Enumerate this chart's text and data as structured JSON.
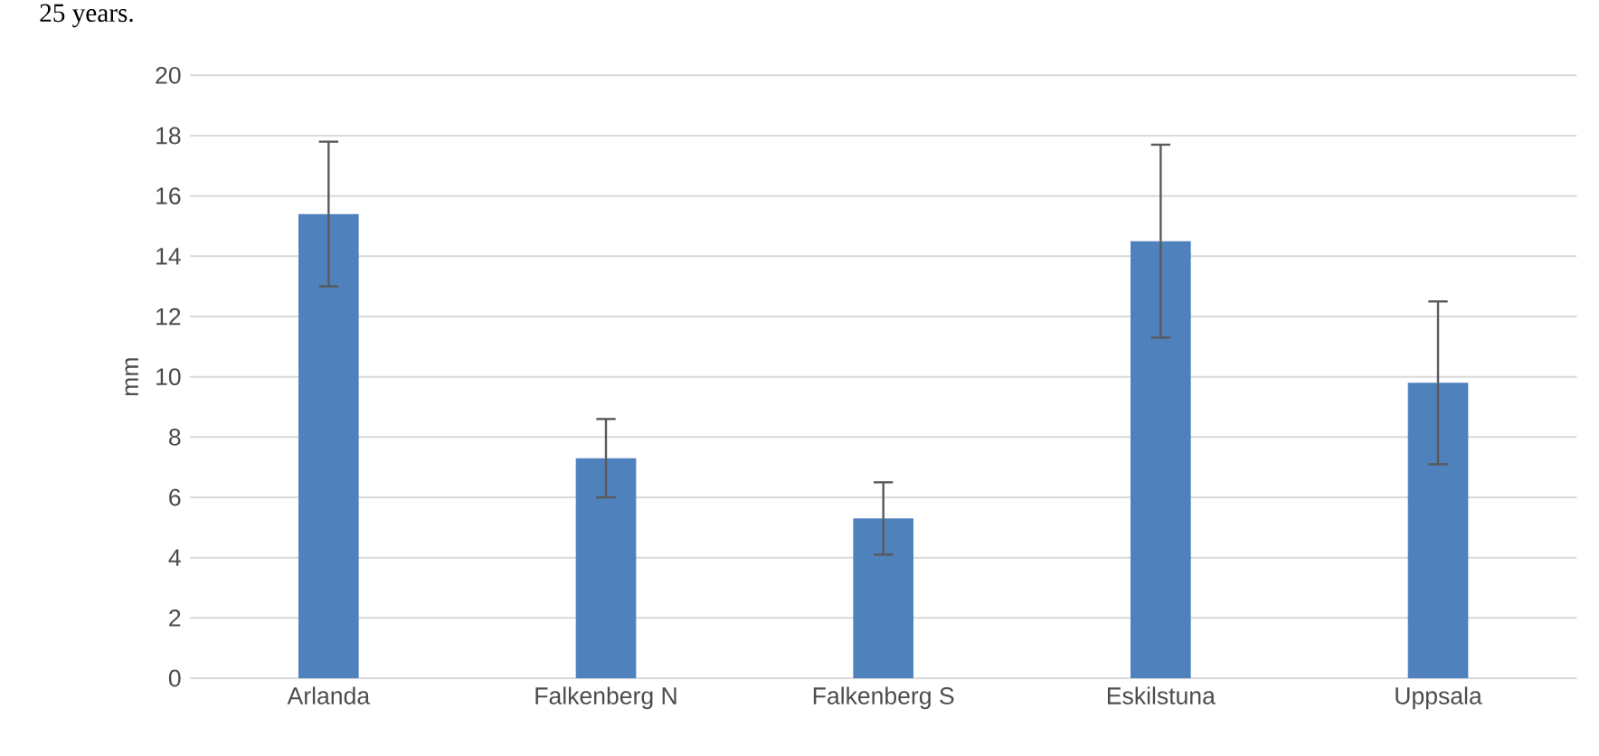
{
  "chart_data": {
    "type": "bar",
    "ylabel": "mm",
    "categories": [
      "Arlanda",
      "Falkenberg N",
      "Falkenberg S",
      "Eskilstuna",
      "Uppsala"
    ],
    "values": [
      15.4,
      7.3,
      5.3,
      14.5,
      9.8
    ],
    "errors": [
      2.4,
      1.3,
      1.2,
      3.2,
      2.7
    ],
    "color": "#4f81bd",
    "ylim": [
      0,
      20
    ],
    "yticks": [
      0,
      2,
      4,
      6,
      8,
      10,
      12,
      14,
      16,
      18,
      20
    ],
    "grid": "y",
    "annotations": [
      "25 years."
    ]
  }
}
